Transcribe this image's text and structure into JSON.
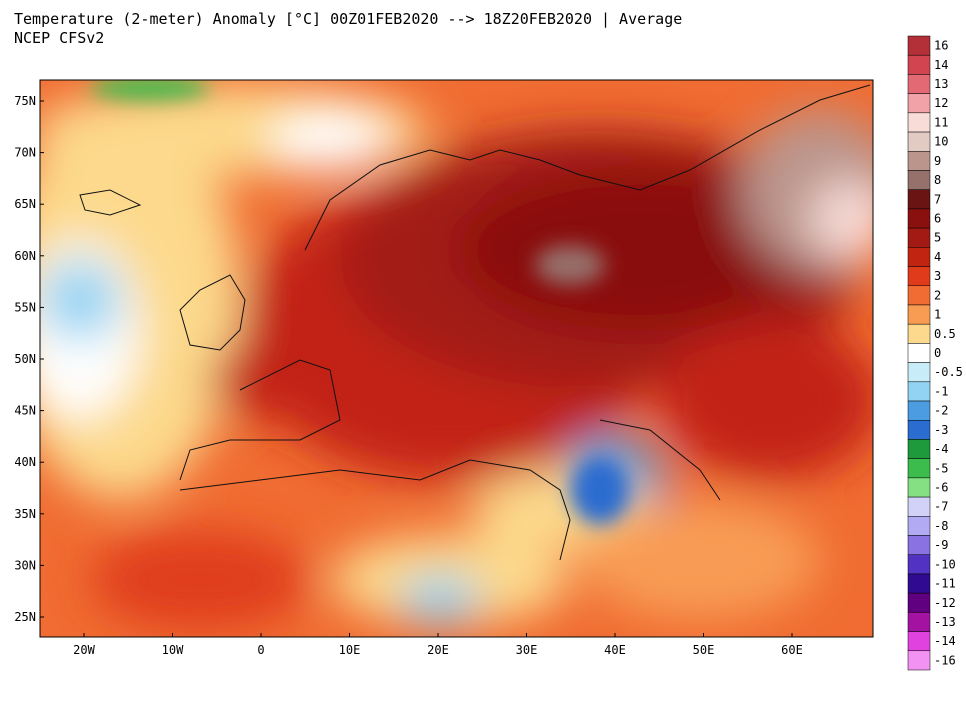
{
  "header": {
    "title": "Temperature (2-meter) Anomaly  [°C] 00Z01FEB2020 --> 18Z20FEB2020 | Average",
    "subtitle": "NCEP CFSv2"
  },
  "map": {
    "lat_labels": [
      "75N",
      "70N",
      "65N",
      "60N",
      "55N",
      "50N",
      "45N",
      "40N",
      "35N",
      "30N",
      "25N"
    ],
    "lon_labels": [
      "20W",
      "10W",
      "0",
      "10E",
      "20E",
      "30E",
      "40E",
      "50E",
      "60E"
    ]
  },
  "colorbar": [
    {
      "label": "16",
      "color": "#b33038"
    },
    {
      "label": "14",
      "color": "#d24550"
    },
    {
      "label": "13",
      "color": "#e36a75"
    },
    {
      "label": "12",
      "color": "#f0a2a8"
    },
    {
      "label": "11",
      "color": "#f8dcd8"
    },
    {
      "label": "10",
      "color": "#e2cbc2"
    },
    {
      "label": "9",
      "color": "#bb958c"
    },
    {
      "label": "8",
      "color": "#96706a"
    },
    {
      "label": "7",
      "color": "#6a1414"
    },
    {
      "label": "6",
      "color": "#8a1010"
    },
    {
      "label": "5",
      "color": "#a31a14"
    },
    {
      "label": "4",
      "color": "#c22412"
    },
    {
      "label": "3",
      "color": "#e03c1c"
    },
    {
      "label": "2",
      "color": "#f06c32"
    },
    {
      "label": "1",
      "color": "#f89c54"
    },
    {
      "label": "0.5",
      "color": "#fcd98c"
    },
    {
      "label": "0",
      "color": "#ffffff"
    },
    {
      "label": "-0.5",
      "color": "#c8ecf8"
    },
    {
      "label": "-1",
      "color": "#92d2f2"
    },
    {
      "label": "-2",
      "color": "#4c9ce2"
    },
    {
      "label": "-3",
      "color": "#2a6cd0"
    },
    {
      "label": "-4",
      "color": "#1e9a3c"
    },
    {
      "label": "-5",
      "color": "#3cbc4c"
    },
    {
      "label": "-6",
      "color": "#84e082"
    },
    {
      "label": "-7",
      "color": "#d2d2f8"
    },
    {
      "label": "-8",
      "color": "#b2aaf2"
    },
    {
      "label": "-9",
      "color": "#8a72e2"
    },
    {
      "label": "-10",
      "color": "#5232c2"
    },
    {
      "label": "-11",
      "color": "#300a90"
    },
    {
      "label": "-12",
      "color": "#600080"
    },
    {
      "label": "-13",
      "color": "#a412a2"
    },
    {
      "label": "-14",
      "color": "#e042e0"
    },
    {
      "label": "-16",
      "color": "#f292f2"
    }
  ]
}
